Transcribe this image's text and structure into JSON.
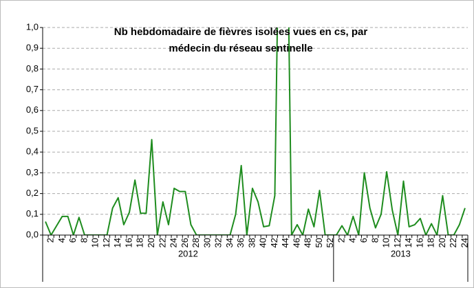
{
  "chart_data": {
    "type": "line",
    "title": [
      "Nb hebdomadaire de fièvres isolées vues en cs, par",
      "médecin du réseau sentinelle"
    ],
    "categories": [
      null,
      "2",
      null,
      "4",
      null,
      "6",
      null,
      "8",
      null,
      "10",
      null,
      "12",
      null,
      "14",
      null,
      "16",
      null,
      "18",
      null,
      "20",
      null,
      "22",
      null,
      "24",
      null,
      "26",
      null,
      "28",
      null,
      "30",
      null,
      "32",
      null,
      "34",
      null,
      "36",
      null,
      "38",
      null,
      "40",
      null,
      "42",
      null,
      "44",
      null,
      "46",
      null,
      "48",
      null,
      "50",
      null,
      "52",
      null,
      "2",
      null,
      "4",
      null,
      "6",
      null,
      "8",
      null,
      "10",
      null,
      "12",
      null,
      "14",
      null,
      "16",
      null,
      "18",
      null,
      "20",
      null,
      "22",
      null,
      "24"
    ],
    "groups": [
      {
        "name": "2012",
        "weeks": 52
      },
      {
        "name": "2013",
        "weeks": 24
      }
    ],
    "series": [
      {
        "name": "Fièvres isolées",
        "color": "#1e8c1e",
        "values": [
          0.065,
          0.0,
          0.045,
          0.09,
          0.09,
          0.0,
          0.085,
          0.0,
          0.0,
          0.0,
          0.0,
          0.0,
          0.13,
          0.18,
          0.05,
          0.11,
          0.265,
          0.105,
          0.105,
          0.46,
          0.0,
          0.16,
          0.05,
          0.225,
          0.21,
          0.21,
          0.05,
          0.0,
          0.0,
          0.0,
          0.0,
          0.0,
          0.0,
          0.0,
          0.1,
          0.335,
          0.0,
          0.225,
          0.16,
          0.04,
          0.045,
          0.19,
          2.0,
          2.0,
          0.0,
          0.05,
          0.0,
          0.125,
          0.04,
          0.215,
          0.0,
          0.0,
          0.0,
          0.045,
          0.0,
          0.09,
          0.0,
          0.3,
          0.13,
          0.035,
          0.1,
          0.305,
          0.12,
          0.0,
          0.26,
          0.04,
          0.05,
          0.08,
          0.0,
          0.055,
          0.0,
          0.19,
          0.0,
          0.0,
          0.05,
          0.13
        ]
      }
    ],
    "ylim": [
      0,
      1
    ],
    "yticks": [
      {
        "value": 0,
        "label": "0,0"
      },
      {
        "value": 0.1,
        "label": "0,1"
      },
      {
        "value": 0.2,
        "label": "0,2"
      },
      {
        "value": 0.3,
        "label": "0,3"
      },
      {
        "value": 0.4,
        "label": "0,4"
      },
      {
        "value": 0.5,
        "label": "0,5"
      },
      {
        "value": 0.6,
        "label": "0,6"
      },
      {
        "value": 0.7,
        "label": "0,7"
      },
      {
        "value": 0.8,
        "label": "0,8"
      },
      {
        "value": 0.9,
        "label": "0,9"
      },
      {
        "value": 1,
        "label": "1,0"
      }
    ],
    "grid": true
  }
}
